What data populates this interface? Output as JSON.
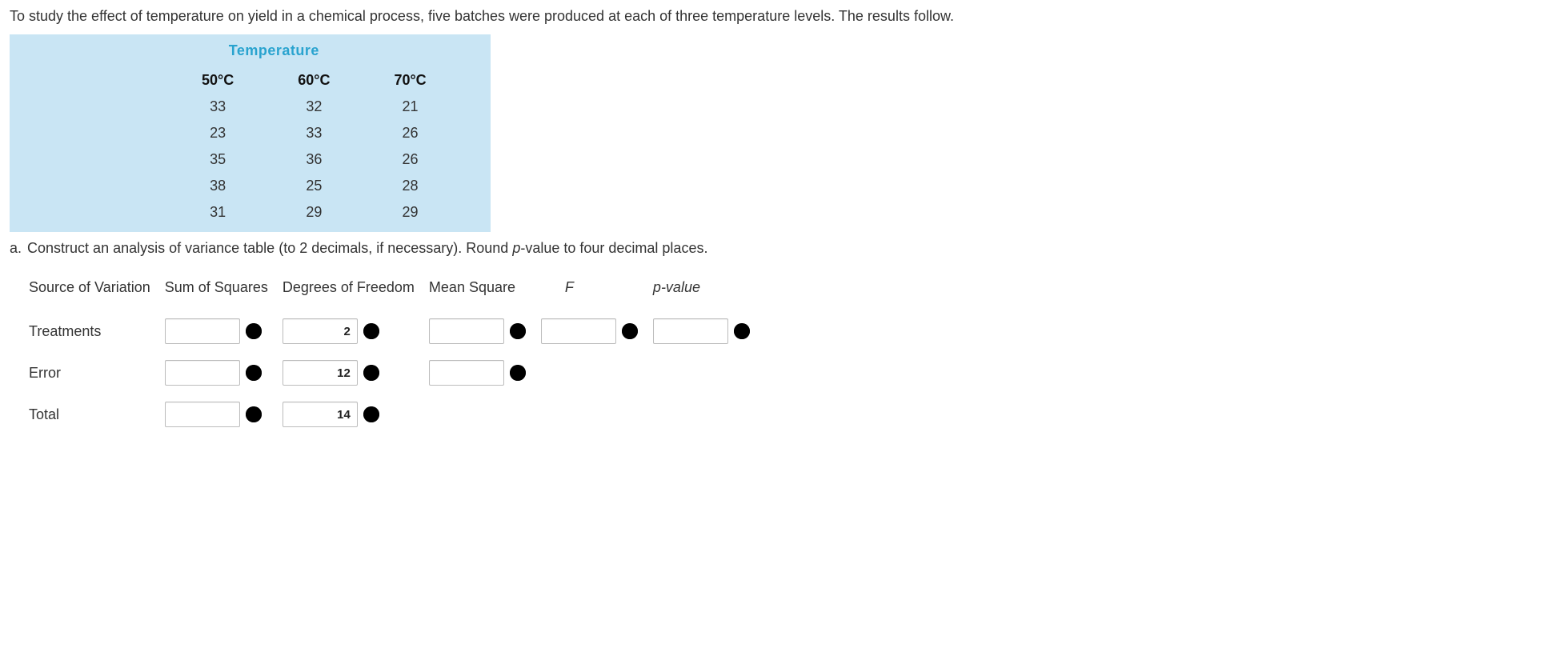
{
  "question_text": "To study the effect of temperature on yield in a chemical process, five batches were produced at each of three temperature levels. The results follow.",
  "data_table": {
    "title": "Temperature",
    "columns": [
      "50°C",
      "60°C",
      "70°C"
    ],
    "rows": [
      [
        "33",
        "32",
        "21"
      ],
      [
        "23",
        "33",
        "26"
      ],
      [
        "35",
        "36",
        "26"
      ],
      [
        "38",
        "25",
        "28"
      ],
      [
        "31",
        "29",
        "29"
      ]
    ],
    "bg_color": "#c9e5f4",
    "title_color": "#29a3cf"
  },
  "part_a": {
    "letter": "a.",
    "text_before": "Construct an analysis of variance table (to 2 decimals, if necessary). Round ",
    "italic1": "p",
    "text_after": "-value to four decimal places."
  },
  "anova": {
    "headers": {
      "source": "Source of Variation",
      "ss": "Sum of Squares",
      "df": "Degrees of Freedom",
      "ms": "Mean Square",
      "f": "F",
      "p": "p",
      "p_suffix": "-value"
    },
    "rows": {
      "treatments": {
        "label": "Treatments",
        "ss": {
          "value": "",
          "status": "wrong"
        },
        "df": {
          "value": "2",
          "status": "correct"
        },
        "ms": {
          "value": "",
          "status": "wrong"
        },
        "f": {
          "value": "",
          "status": "wrong"
        },
        "p": {
          "value": "",
          "status": "wrong"
        }
      },
      "error": {
        "label": "Error",
        "ss": {
          "value": "",
          "status": "wrong"
        },
        "df": {
          "value": "12",
          "status": "correct"
        },
        "ms": {
          "value": "",
          "status": "wrong"
        }
      },
      "total": {
        "label": "Total",
        "ss": {
          "value": "",
          "status": "wrong"
        },
        "df": {
          "value": "14",
          "status": "correct"
        }
      }
    }
  },
  "colors": {
    "wrong_fill": "#e5493a",
    "correct_stroke": "#4aa52a"
  }
}
